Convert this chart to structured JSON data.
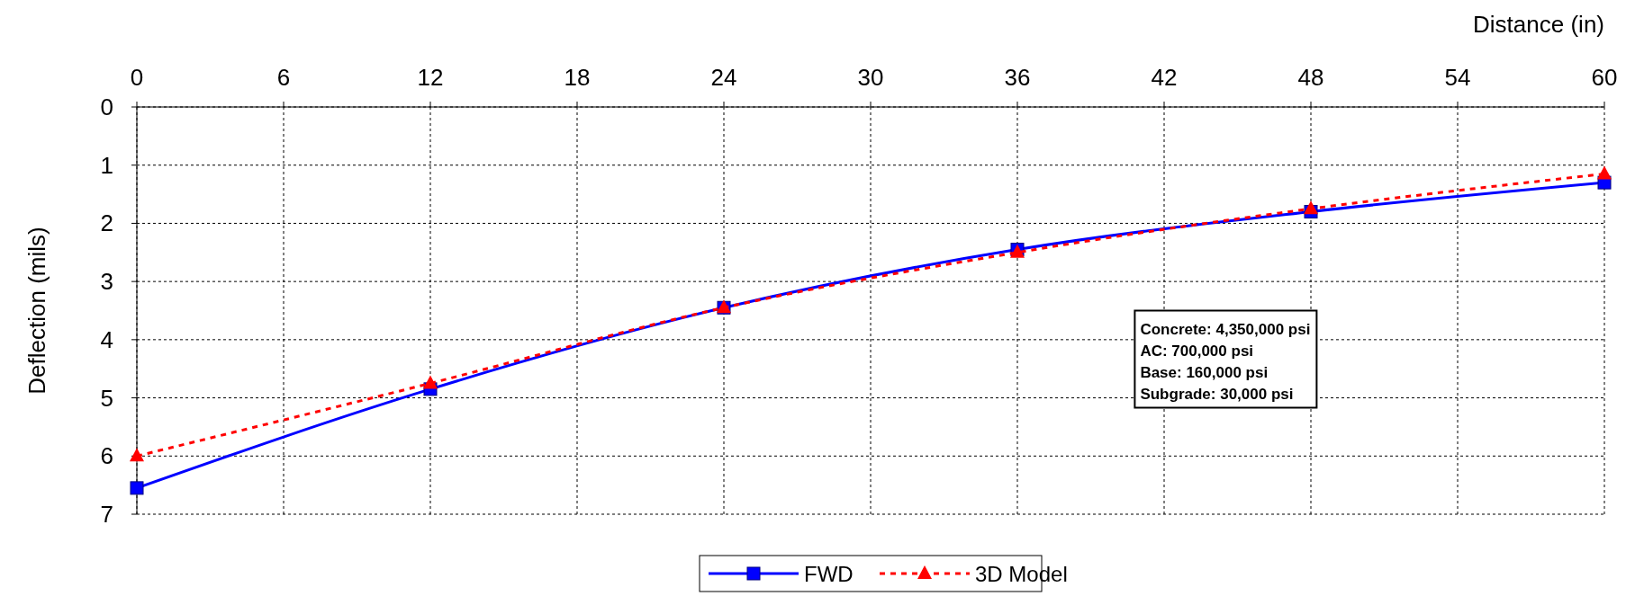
{
  "chart_data": {
    "type": "line",
    "xlabel": "Distance (in)",
    "ylabel": "Deflection (mils)",
    "x": [
      0,
      12,
      24,
      36,
      48,
      60
    ],
    "xlim": [
      0,
      60
    ],
    "xticks": [
      0,
      6,
      12,
      18,
      24,
      30,
      36,
      42,
      48,
      54,
      60
    ],
    "ylim": [
      7,
      0
    ],
    "yticks": [
      0,
      1,
      2,
      3,
      4,
      5,
      6,
      7
    ],
    "grid": true,
    "legend": "bottom",
    "series": [
      {
        "name": "FWD",
        "color": "#0000ff",
        "values": [
          6.55,
          4.85,
          3.45,
          2.45,
          1.8,
          1.3
        ],
        "marker": "square",
        "line_style": "solid"
      },
      {
        "name": "3D Model",
        "color": "#ff0000",
        "values": [
          6.0,
          4.75,
          3.45,
          2.5,
          1.75,
          1.15
        ],
        "marker": "triangle",
        "line_style": "dashed"
      }
    ],
    "annotations": [
      "Concrete: 4,350,000 psi",
      "AC: 700,000 psi",
      "Base: 160,000 psi",
      "Subgrade: 30,000 psi"
    ]
  }
}
